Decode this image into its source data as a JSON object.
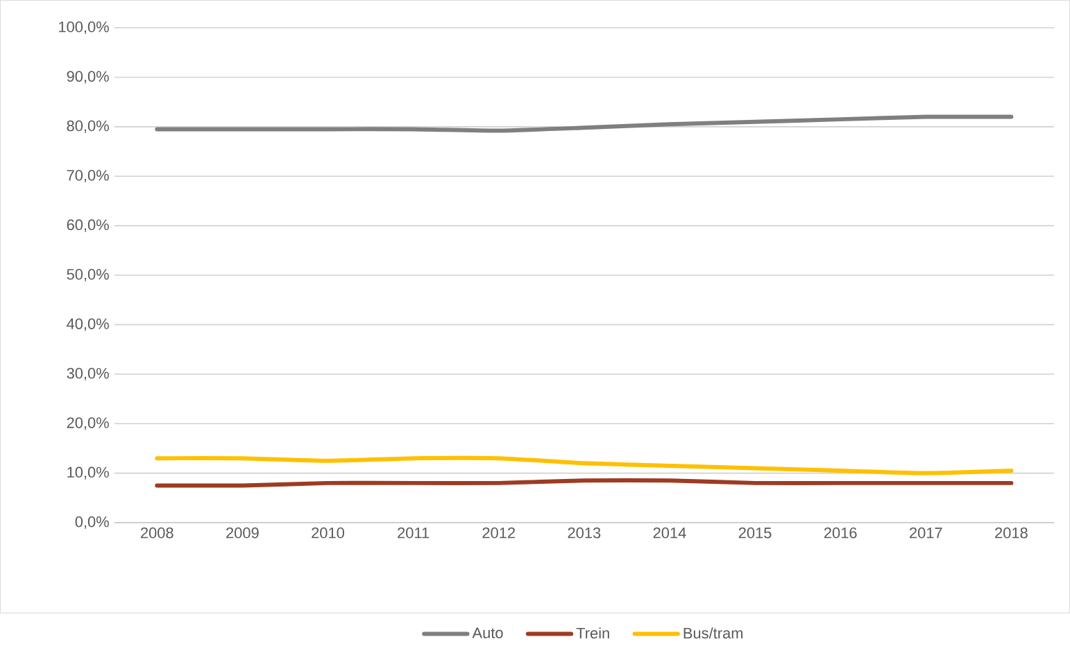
{
  "chart_data": {
    "type": "line",
    "categories": [
      "2008",
      "2009",
      "2010",
      "2011",
      "2012",
      "2013",
      "2014",
      "2015",
      "2016",
      "2017",
      "2018"
    ],
    "series": [
      {
        "name": "Auto",
        "color": "#7f7f7f",
        "values": [
          79.5,
          79.5,
          79.5,
          79.5,
          79.2,
          79.8,
          80.5,
          81,
          81.5,
          82,
          82
        ]
      },
      {
        "name": "Trein",
        "color": "#9e3b22",
        "values": [
          7.5,
          7.5,
          8,
          8,
          8,
          8.5,
          8.5,
          8,
          8,
          8,
          8
        ]
      },
      {
        "name": "Bus/tram",
        "color": "#ffc000",
        "values": [
          13,
          13,
          12.5,
          13,
          13,
          12,
          11.5,
          11,
          10.5,
          10,
          10.5
        ]
      }
    ],
    "ylim": [
      0,
      100
    ],
    "yticks": [
      {
        "value": 0,
        "label": "0,0%"
      },
      {
        "value": 10,
        "label": "10,0%"
      },
      {
        "value": 20,
        "label": "20,0%"
      },
      {
        "value": 30,
        "label": "30,0%"
      },
      {
        "value": 40,
        "label": "40,0%"
      },
      {
        "value": 50,
        "label": "50,0%"
      },
      {
        "value": 60,
        "label": "60,0%"
      },
      {
        "value": 70,
        "label": "70,0%"
      },
      {
        "value": 80,
        "label": "80,0%"
      },
      {
        "value": 90,
        "label": "90,0%"
      },
      {
        "value": 100,
        "label": "100,0%"
      }
    ],
    "grid": "y",
    "legend": "bottom",
    "marker": "none",
    "line_style": "solid"
  }
}
